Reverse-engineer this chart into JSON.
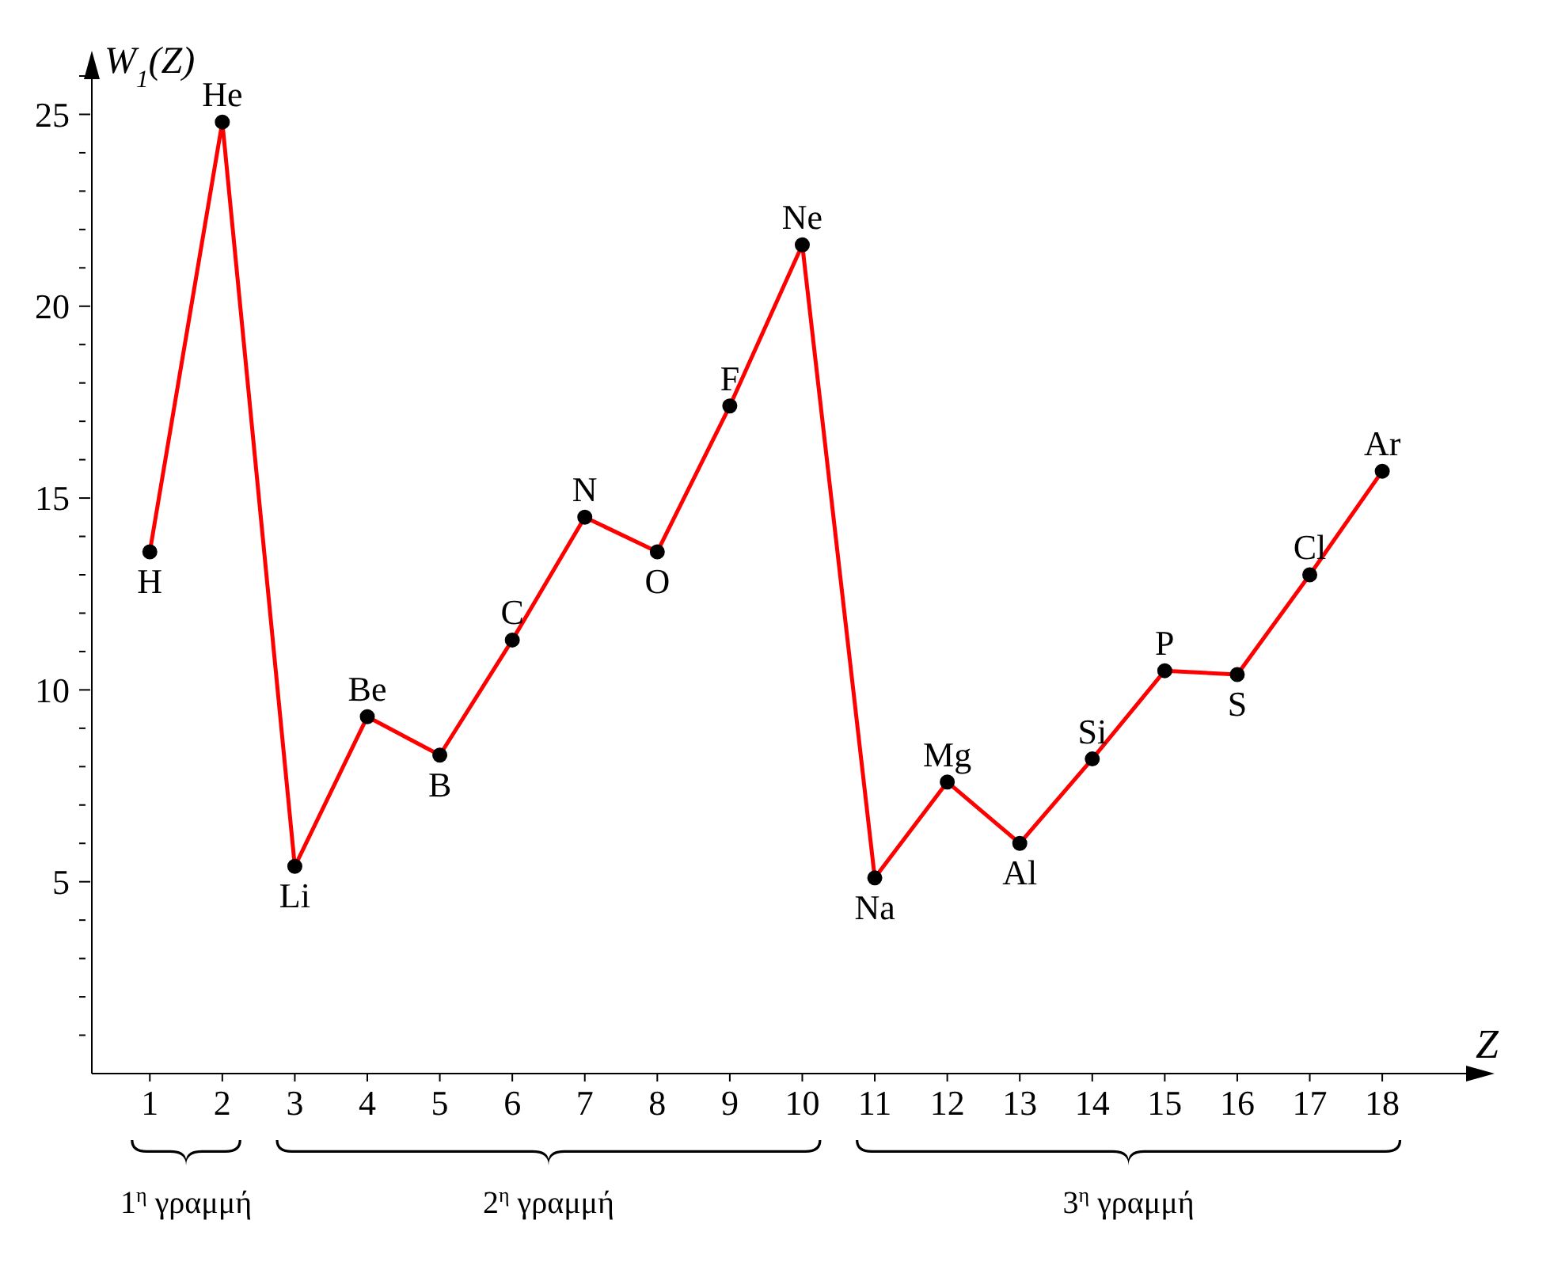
{
  "chart_data": {
    "type": "line",
    "xlabel": "Z",
    "ylabel": "W$_{1}$(Z)",
    "x": [
      1,
      2,
      3,
      4,
      5,
      6,
      7,
      8,
      9,
      10,
      11,
      12,
      13,
      14,
      15,
      16,
      17,
      18
    ],
    "series": [
      {
        "color": "#ff0000",
        "values": [
          13.6,
          24.8,
          5.4,
          9.3,
          8.3,
          11.3,
          14.5,
          13.6,
          17.4,
          21.6,
          5.1,
          7.6,
          6.0,
          8.2,
          10.5,
          10.4,
          13.0,
          15.7
        ]
      }
    ],
    "xlim": [
      0.2,
      19.2
    ],
    "xticks": [
      1,
      2,
      3,
      4,
      5,
      6,
      7,
      8,
      9,
      10,
      11,
      12,
      13,
      14,
      15,
      16,
      17,
      18
    ],
    "ylim": [
      0,
      26
    ],
    "yticks": [
      {
        "value": 1,
        "label": null
      },
      {
        "value": 2,
        "label": null
      },
      {
        "value": 3,
        "label": null
      },
      {
        "value": 4,
        "label": null
      },
      5,
      {
        "value": 6,
        "label": null
      },
      {
        "value": 7,
        "label": null
      },
      {
        "value": 8,
        "label": null
      },
      {
        "value": 9,
        "label": null
      },
      10,
      {
        "value": 11,
        "label": null
      },
      {
        "value": 12,
        "label": null
      },
      {
        "value": 13,
        "label": null
      },
      {
        "value": 14,
        "label": null
      },
      15,
      {
        "value": 16,
        "label": null
      },
      {
        "value": 17,
        "label": null
      },
      {
        "value": 18,
        "label": null
      },
      {
        "value": 19,
        "label": null
      },
      20,
      {
        "value": 21,
        "label": null
      },
      {
        "value": 22,
        "label": null
      },
      {
        "value": 23,
        "label": null
      },
      {
        "value": 24,
        "label": null
      },
      25,
      {
        "value": 26,
        "label": null
      }
    ],
    "grid": false,
    "legend": false,
    "marker": "circle",
    "line_style": "solid",
    "annotations": [
      {
        "text": "H",
        "x": 1,
        "y": 13.6
      },
      {
        "text": "He",
        "x": 2,
        "y": 24.8
      },
      {
        "text": "Li",
        "x": 3,
        "y": 5.4
      },
      {
        "text": "Be",
        "x": 4,
        "y": 9.3
      },
      {
        "text": "B",
        "x": 5,
        "y": 8.3
      },
      {
        "text": "C",
        "x": 6,
        "y": 11.3
      },
      {
        "text": "N",
        "x": 7,
        "y": 14.5
      },
      {
        "text": "O",
        "x": 8,
        "y": 13.6
      },
      {
        "text": "F",
        "x": 9,
        "y": 17.4
      },
      {
        "text": "Ne",
        "x": 10,
        "y": 21.6
      },
      {
        "text": "Na",
        "x": 11,
        "y": 5.1
      },
      {
        "text": "Mg",
        "x": 12,
        "y": 7.6
      },
      {
        "text": "Al",
        "x": 13,
        "y": 6.0
      },
      {
        "text": "Si",
        "x": 14,
        "y": 8.2
      },
      {
        "text": "P",
        "x": 15,
        "y": 10.5
      },
      {
        "text": "S",
        "x": 16,
        "y": 10.4
      },
      {
        "text": "Cl",
        "x": 17,
        "y": 13.0
      },
      {
        "text": "Ar",
        "x": 18,
        "y": 15.7
      },
      "1$^{η}$ γραμμή",
      "2$^{η}$ γραμμή",
      "3$^{η}$ γραμμή"
    ]
  }
}
